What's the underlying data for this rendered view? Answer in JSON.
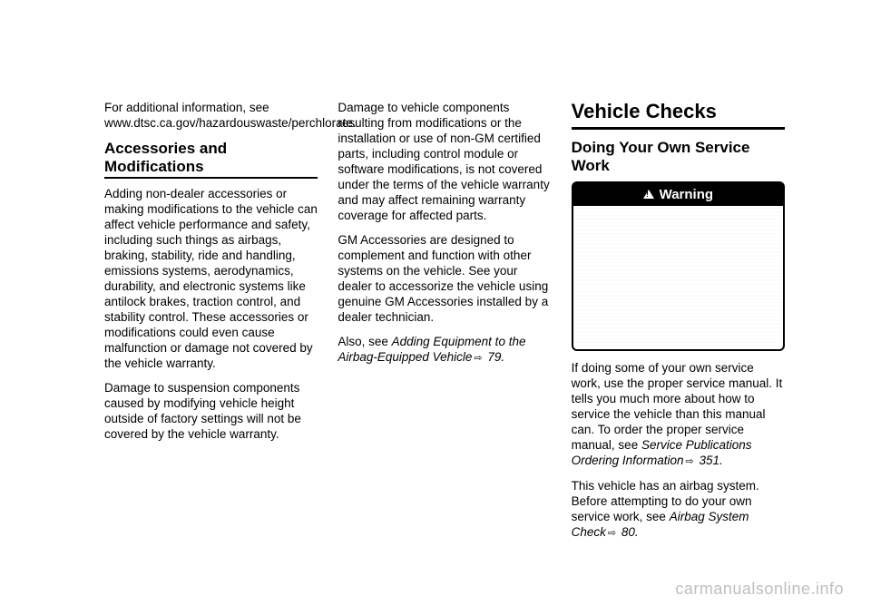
{
  "col1": {
    "p1": "For additional information, see www.dtsc.ca.gov/hazardouswaste/perchlorate.",
    "h1": "Accessories and Modifications",
    "p2": "Adding non-dealer accessories or making modifications to the vehicle can affect vehicle performance and safety, including such things as airbags, braking, stability, ride and handling, emissions systems, aerodynamics, durability, and electronic systems like antilock brakes, traction control, and stability control. These accessories or modifications could even cause malfunction or damage not covered by the vehicle warranty.",
    "p3": "Damage to suspension components caused by modifying vehicle height outside of factory settings will not be covered by the vehicle warranty."
  },
  "col2": {
    "p1": "Damage to vehicle components resulting from modifications or the installation or use of non-GM certified parts, including control module or software modifications, is not covered under the terms of the vehicle warranty and may affect remaining warranty coverage for affected parts.",
    "p2": "GM Accessories are designed to complement and function with other systems on the vehicle. See your dealer to accessorize the vehicle using genuine GM Accessories installed by a dealer technician.",
    "p3a": "Also, see ",
    "p3b": "Adding Equipment to the Airbag-Equipped Vehicle",
    "p3c": " 79."
  },
  "col3": {
    "h1": "Vehicle Checks",
    "h2": "Doing Your Own Service Work",
    "warn_label": "Warning",
    "p1a": "If doing some of your own service work, use the proper service manual. It tells you much more about how to service the vehicle than this manual can. To order the proper service manual, see ",
    "p1b": "Service Publications Ordering Information",
    "p1c": " 351.",
    "p2a": "This vehicle has an airbag system. Before attempting to do your own service work, see ",
    "p2b": "Airbag System Check",
    "p2c": " 80."
  },
  "watermark": "carmanualsonline.info"
}
